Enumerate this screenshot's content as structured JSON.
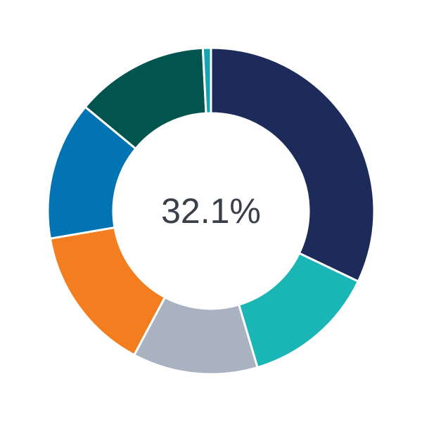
{
  "chart_data": {
    "type": "pie",
    "variant": "donut",
    "center_label": "32.1%",
    "values": [
      32.1,
      13.3,
      12.4,
      14.5,
      13.7,
      13.2,
      0.8
    ],
    "colors": [
      "#1c2b5a",
      "#1ab5b5",
      "#a8b2c0",
      "#f27e20",
      "#0273b3",
      "#02544f",
      "#17a3b0"
    ],
    "start_angle_deg": 0,
    "direction": "clockwise"
  }
}
